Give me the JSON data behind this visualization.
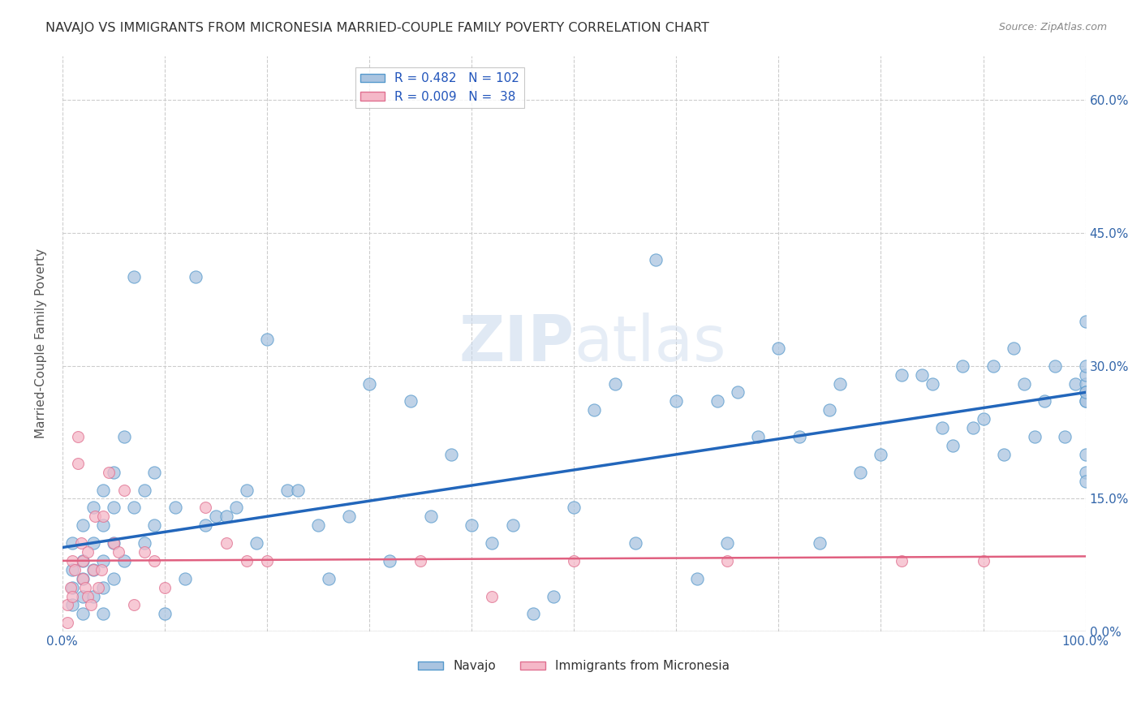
{
  "title": "NAVAJO VS IMMIGRANTS FROM MICRONESIA MARRIED-COUPLE FAMILY POVERTY CORRELATION CHART",
  "source": "Source: ZipAtlas.com",
  "ylabel": "Married-Couple Family Poverty",
  "watermark": "ZIPatlas",
  "navajo_R": 0.482,
  "navajo_N": 102,
  "micronesia_R": 0.009,
  "micronesia_N": 38,
  "navajo_color": "#aac4e0",
  "navajo_edge_color": "#5599cc",
  "navajo_line_color": "#2266bb",
  "micronesia_color": "#f5b8c8",
  "micronesia_edge_color": "#e07090",
  "micronesia_line_color": "#e06080",
  "background_color": "#ffffff",
  "grid_color": "#cccccc",
  "xlim": [
    0,
    100
  ],
  "ylim": [
    0,
    65
  ],
  "yticks": [
    0,
    15,
    30,
    45,
    60
  ],
  "navajo_slope": 0.175,
  "navajo_intercept": 9.5,
  "micronesia_slope": 0.005,
  "micronesia_intercept": 8.0,
  "navajo_x": [
    1,
    1,
    1,
    1,
    2,
    2,
    2,
    2,
    2,
    3,
    3,
    3,
    3,
    4,
    4,
    4,
    4,
    4,
    5,
    5,
    5,
    5,
    6,
    6,
    7,
    7,
    8,
    8,
    9,
    9,
    10,
    11,
    12,
    13,
    14,
    15,
    16,
    17,
    18,
    19,
    20,
    22,
    23,
    25,
    26,
    28,
    30,
    32,
    34,
    36,
    38,
    40,
    42,
    44,
    46,
    48,
    50,
    52,
    54,
    56,
    58,
    60,
    62,
    64,
    65,
    66,
    68,
    70,
    72,
    74,
    75,
    76,
    78,
    80,
    82,
    84,
    85,
    86,
    87,
    88,
    89,
    90,
    91,
    92,
    93,
    94,
    95,
    96,
    97,
    98,
    99,
    100,
    100,
    100,
    100,
    100,
    100,
    100,
    100,
    100,
    100,
    100
  ],
  "navajo_y": [
    10,
    7,
    5,
    3,
    12,
    8,
    6,
    4,
    2,
    14,
    10,
    7,
    4,
    16,
    12,
    8,
    5,
    2,
    18,
    14,
    10,
    6,
    22,
    8,
    40,
    14,
    16,
    10,
    18,
    12,
    2,
    14,
    6,
    40,
    12,
    13,
    13,
    14,
    16,
    10,
    33,
    16,
    16,
    12,
    6,
    13,
    28,
    8,
    26,
    13,
    20,
    12,
    10,
    12,
    2,
    4,
    14,
    25,
    28,
    10,
    42,
    26,
    6,
    26,
    10,
    27,
    22,
    32,
    22,
    10,
    25,
    28,
    18,
    20,
    29,
    29,
    28,
    23,
    21,
    30,
    23,
    24,
    30,
    20,
    32,
    28,
    22,
    26,
    30,
    22,
    28,
    26,
    28,
    29,
    30,
    27,
    26,
    18,
    17,
    35,
    20,
    27
  ],
  "micronesia_x": [
    0.5,
    0.5,
    0.8,
    1.0,
    1.0,
    1.2,
    1.5,
    1.5,
    1.8,
    2.0,
    2.0,
    2.2,
    2.5,
    2.5,
    2.8,
    3.0,
    3.2,
    3.5,
    3.8,
    4.0,
    4.5,
    5.0,
    5.5,
    6.0,
    7.0,
    8.0,
    9.0,
    10.0,
    14.0,
    16.0,
    18.0,
    20.0,
    35.0,
    42.0,
    50.0,
    65.0,
    82.0,
    90.0
  ],
  "micronesia_y": [
    3,
    1,
    5,
    8,
    4,
    7,
    22,
    19,
    10,
    8,
    6,
    5,
    9,
    4,
    3,
    7,
    13,
    5,
    7,
    13,
    18,
    10,
    9,
    16,
    3,
    9,
    8,
    5,
    14,
    10,
    8,
    8,
    8,
    4,
    8,
    8,
    8,
    8
  ]
}
